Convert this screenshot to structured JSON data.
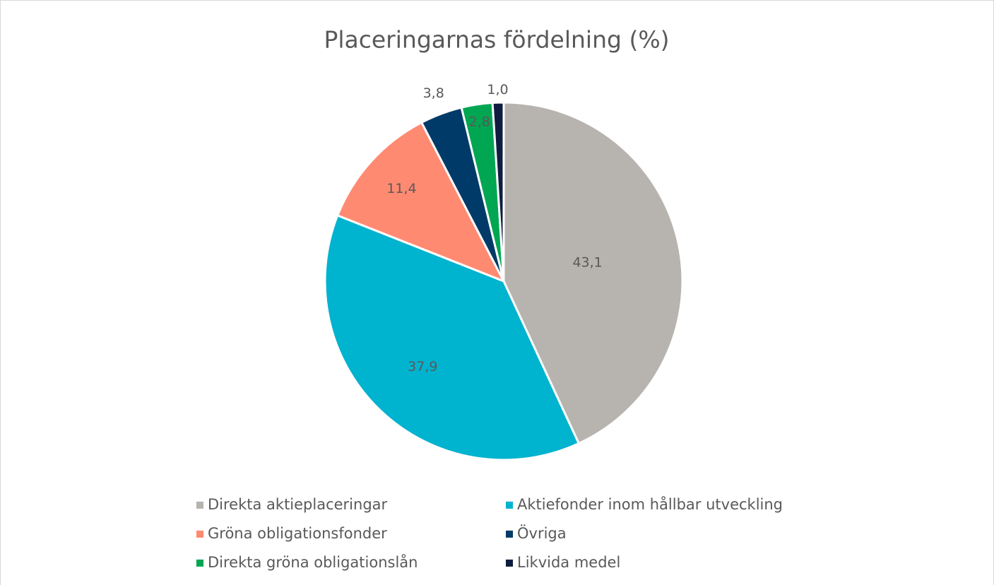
{
  "chart_data": {
    "type": "pie",
    "title": "Placeringarnas fördelning (%)",
    "categories": [
      "Direkta aktieplaceringar",
      "Aktiefonder inom hållbar utveckling",
      "Gröna obligationsfonder",
      "Övriga",
      "Direkta gröna obligationslån",
      "Likvida medel"
    ],
    "values": [
      43.1,
      37.9,
      11.4,
      3.8,
      2.8,
      1.0
    ],
    "value_labels": [
      "43,1",
      "37,9",
      "11,4",
      "3,8",
      "2,8",
      "1,0"
    ],
    "colors": [
      "#b7b3af",
      "#00b3cf",
      "#ff8a72",
      "#003a68",
      "#00a651",
      "#0e1d3f"
    ],
    "legend": "bottom"
  }
}
